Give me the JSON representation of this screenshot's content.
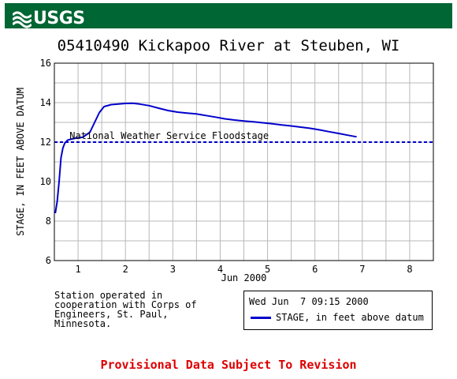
{
  "header": {
    "logo_text": "USGS",
    "logo_color": "#006633"
  },
  "chart_data": {
    "type": "line",
    "title": "05410490 Kickapoo River at Steuben, WI",
    "xlabel": "Jun 2000",
    "ylabel": "STAGE, IN FEET ABOVE DATUM",
    "xlim": [
      0.5,
      8.5
    ],
    "ylim": [
      6,
      16
    ],
    "x_ticks": [
      1,
      2,
      3,
      4,
      5,
      6,
      7,
      8
    ],
    "y_ticks": [
      6,
      8,
      10,
      12,
      14,
      16
    ],
    "grid": true,
    "series": [
      {
        "name": "STAGE, in feet above datum",
        "color": "#0000cc",
        "x": [
          0.52,
          0.56,
          0.6,
          0.64,
          0.68,
          0.72,
          0.78,
          0.85,
          0.95,
          1.1,
          1.25,
          1.35,
          1.45,
          1.55,
          1.7,
          1.85,
          2.0,
          2.15,
          2.3,
          2.5,
          2.7,
          2.9,
          3.1,
          3.3,
          3.5,
          3.7,
          3.9,
          4.1,
          4.3,
          4.5,
          4.7,
          4.9,
          5.1,
          5.3,
          5.5,
          5.7,
          5.9,
          6.1,
          6.3,
          6.5,
          6.7,
          6.88
        ],
        "y": [
          8.4,
          9.0,
          10.0,
          11.2,
          11.7,
          11.95,
          12.1,
          12.15,
          12.2,
          12.25,
          12.5,
          13.0,
          13.5,
          13.8,
          13.9,
          13.93,
          13.96,
          13.97,
          13.93,
          13.85,
          13.72,
          13.6,
          13.52,
          13.47,
          13.43,
          13.35,
          13.27,
          13.18,
          13.12,
          13.07,
          13.03,
          12.98,
          12.93,
          12.87,
          12.82,
          12.76,
          12.7,
          12.62,
          12.53,
          12.44,
          12.35,
          12.27
        ]
      }
    ],
    "reference_line": {
      "label": "National Weather Service Floodstage",
      "y": 12,
      "color": "#0000cc",
      "style": "dashed"
    }
  },
  "station_note": "Station operated in\ncooperation with Corps of\nEngineers, St. Paul,\nMinnesota.",
  "legend": {
    "timestamp": "Wed Jun  7 09:15 2000",
    "series_label": "STAGE, in feet above datum"
  },
  "footer": {
    "provisional": "Provisional Data Subject To Revision",
    "provisional_color": "#dd0000"
  }
}
